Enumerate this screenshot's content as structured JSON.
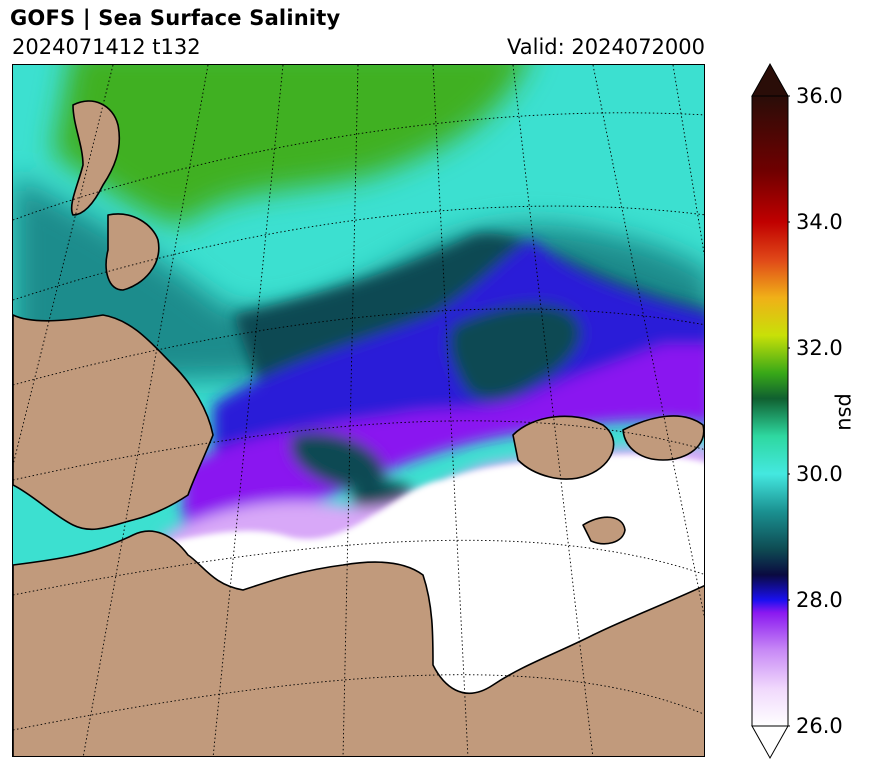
{
  "header": {
    "title": "GOFS  |  Sea Surface Salinity",
    "run": "2024071412 t132",
    "valid": "Valid: 2024072000"
  },
  "colorbar": {
    "label": "psu",
    "min": 26.0,
    "max": 36.0,
    "extend": "both",
    "ticks": [
      {
        "value": 26.0,
        "label": "26.0"
      },
      {
        "value": 28.0,
        "label": "28.0"
      },
      {
        "value": 30.0,
        "label": "30.0"
      },
      {
        "value": 32.0,
        "label": "32.0"
      },
      {
        "value": 34.0,
        "label": "34.0"
      },
      {
        "value": 36.0,
        "label": "36.0"
      }
    ],
    "colors": {
      "low_extend": "#ffffff",
      "high_extend": "#2a0d08"
    }
  },
  "map": {
    "land_color": "#c19a7c",
    "coastline_color": "#000000",
    "graticule_style": "dotted",
    "colors": {
      "open_ocean_high": "#3ce0d0",
      "teal": "#1e8c8c",
      "dark_teal": "#0e4a52",
      "green_ridge": "#40b020",
      "blue": "#2a1ad8",
      "violet": "#8a18f0",
      "lavender": "#d8a8f8",
      "fresh": "#ffffff"
    }
  }
}
